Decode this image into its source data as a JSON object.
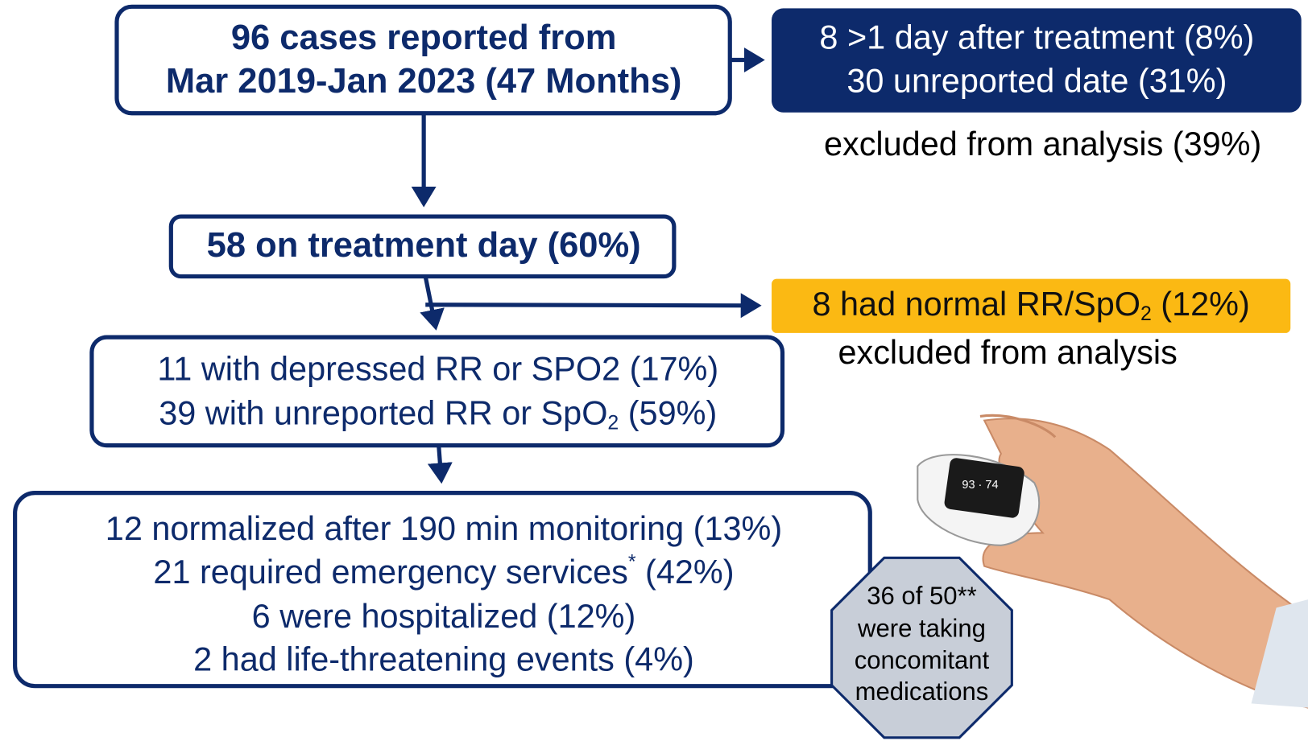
{
  "nodes": [
    {
      "lines": [
        "96 cases reported from",
        "Mar 2019-Jan 2023 (47 Months)"
      ]
    },
    {
      "lines": [
        "8 >1 day after treatment (8%)",
        "30 unreported date (31%)"
      ],
      "note": "excluded from analysis (39%)"
    },
    {
      "lines": [
        "58 on treatment day (60%)"
      ]
    },
    {
      "lines": [
        {
          "text": "8 had normal RR/SpO",
          "sub": "2",
          "tail": " (12%)"
        }
      ],
      "note": "excluded from analysis"
    },
    {
      "lines": [
        "11 with depressed RR or SPO2 (17%)",
        {
          "text": "39 with unreported RR or SpO",
          "sub": "2",
          "tail": " (59%)"
        }
      ]
    },
    {
      "lines": [
        "12 normalized after 190 min monitoring (13%)",
        {
          "text": "21 required emergency services",
          "sup": "*",
          "tail": " (42%)"
        },
        "6 were hospitalized (12%)",
        "2 had life-threatening events (4%)"
      ]
    },
    {
      "lines": [
        "36 of 50**",
        "were taking",
        "concomitant",
        "medications"
      ]
    }
  ]
}
